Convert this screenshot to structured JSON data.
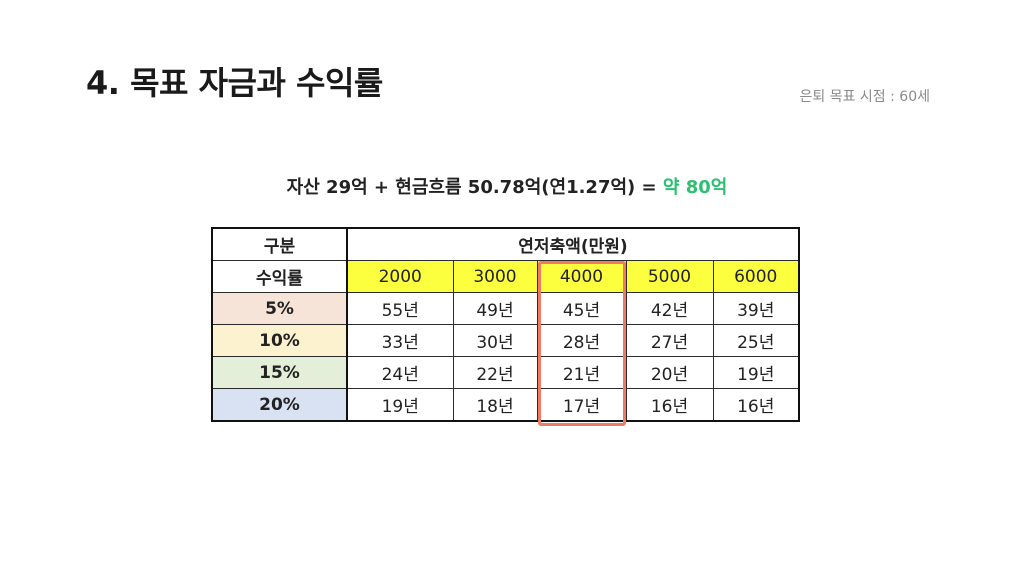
{
  "title": "4. 목표 자금과 수익률",
  "retirement_note": "은퇴 목표 시점 : 60세",
  "formula": {
    "text": "자산 29억 + 현금흐름 50.78억(연1.27억) = ",
    "highlight": "약 80억",
    "highlight_color": "#2fbf71"
  },
  "table": {
    "header_category": "구분",
    "header_group": "연저축액(만원)",
    "header_rate": "수익률",
    "savings_columns": [
      "2000",
      "3000",
      "4000",
      "5000",
      "6000"
    ],
    "highlighted_column": "4000",
    "highlight_box_color": "#f07a62",
    "header_fill_color": "#fbff3d",
    "rows": [
      {
        "rate": "5%",
        "color": "#f6e4d9",
        "years": [
          "55년",
          "49년",
          "45년",
          "42년",
          "39년"
        ]
      },
      {
        "rate": "10%",
        "color": "#fdf2cf",
        "years": [
          "33년",
          "30년",
          "28년",
          "27년",
          "25년"
        ]
      },
      {
        "rate": "15%",
        "color": "#e3efd9",
        "years": [
          "24년",
          "22년",
          "21년",
          "20년",
          "19년"
        ]
      },
      {
        "rate": "20%",
        "color": "#d9e2f2",
        "years": [
          "19년",
          "18년",
          "17년",
          "16년",
          "16년"
        ]
      }
    ]
  }
}
